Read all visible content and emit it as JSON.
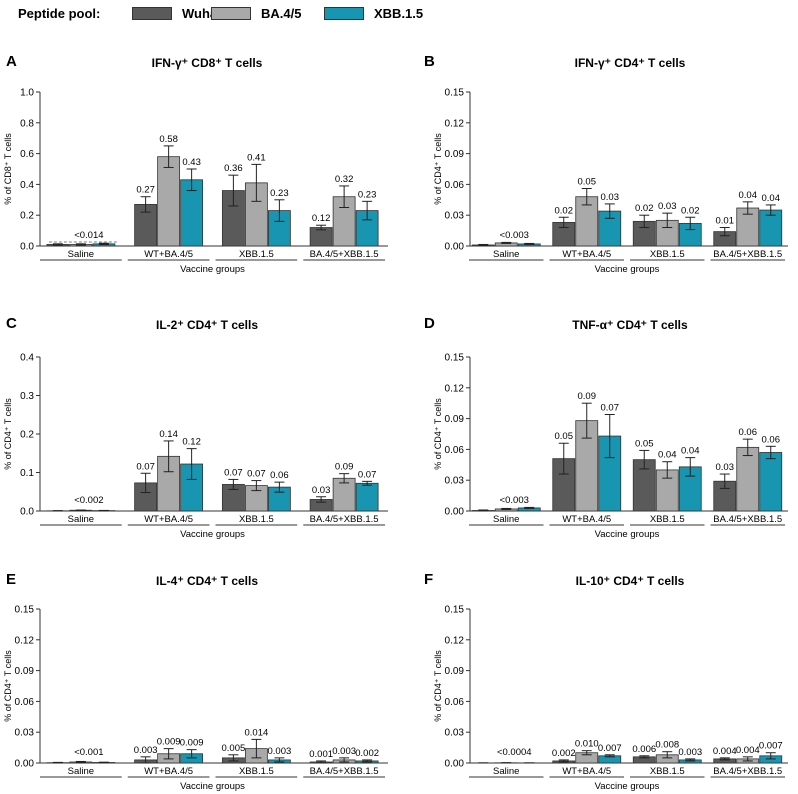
{
  "legend": {
    "title": "Peptide pool:",
    "items": [
      {
        "label": "Wuhan",
        "color": "#5a5a5a"
      },
      {
        "label": "BA.4/5",
        "color": "#a9a9a9"
      },
      {
        "label": "XBB.1.5",
        "color": "#1895b0"
      }
    ]
  },
  "chart_data": [
    {
      "panel": "A",
      "type": "bar",
      "title": "IFN-γ⁺ CD8⁺ T cells",
      "ylabel": "% of CD8⁺ T cells",
      "xlabel": "Vaccine groups",
      "ylim": [
        0,
        1.0
      ],
      "yticks": [
        "0.0",
        "0.2",
        "0.4",
        "0.6",
        "0.8",
        "1.0"
      ],
      "yticks_values": [
        0,
        0.2,
        0.4,
        0.6,
        0.8,
        1.0
      ],
      "categories": [
        "Saline",
        "WT+BA.4/5",
        "XBB.1.5",
        "BA.4/5+XBB.1.5"
      ],
      "series": [
        {
          "name": "Wuhan",
          "values": [
            0.01,
            0.27,
            0.36,
            0.12
          ],
          "errors": [
            0.004,
            0.05,
            0.1,
            0.015
          ]
        },
        {
          "name": "BA.4/5",
          "values": [
            0.01,
            0.58,
            0.41,
            0.32
          ],
          "errors": [
            0.004,
            0.07,
            0.12,
            0.07
          ]
        },
        {
          "name": "XBB.1.5",
          "values": [
            0.014,
            0.43,
            0.23,
            0.23
          ],
          "errors": [
            0.004,
            0.07,
            0.07,
            0.06
          ]
        }
      ],
      "labels": [
        [
          null,
          "0.27",
          "0.36",
          "0.12"
        ],
        [
          null,
          "0.58",
          "0.41",
          "0.32"
        ],
        [
          null,
          "0.43",
          "0.23",
          "0.23"
        ]
      ],
      "group_labels": [
        "<0.014",
        null,
        null,
        null
      ]
    },
    {
      "panel": "B",
      "type": "bar",
      "title": "IFN-γ⁺ CD4⁺ T cells",
      "ylabel": "% of CD4⁺ T cells",
      "xlabel": "Vaccine groups",
      "ylim": [
        0,
        0.15
      ],
      "yticks": [
        "0.00",
        "0.03",
        "0.06",
        "0.09",
        "0.12",
        "0.15"
      ],
      "yticks_values": [
        0,
        0.03,
        0.06,
        0.09,
        0.12,
        0.15
      ],
      "categories": [
        "Saline",
        "WT+BA.4/5",
        "XBB.1.5",
        "BA.4/5+XBB.1.5"
      ],
      "series": [
        {
          "name": "Wuhan",
          "values": [
            0.001,
            0.023,
            0.024,
            0.014
          ],
          "errors": [
            0.0005,
            0.005,
            0.006,
            0.004
          ]
        },
        {
          "name": "BA.4/5",
          "values": [
            0.003,
            0.048,
            0.025,
            0.037
          ],
          "errors": [
            0.0005,
            0.008,
            0.007,
            0.006
          ]
        },
        {
          "name": "XBB.1.5",
          "values": [
            0.002,
            0.034,
            0.022,
            0.035
          ],
          "errors": [
            0.0005,
            0.007,
            0.006,
            0.005
          ]
        }
      ],
      "labels": [
        [
          null,
          "0.02",
          "0.02",
          "0.01"
        ],
        [
          null,
          "0.05",
          "0.03",
          "0.04"
        ],
        [
          null,
          "0.03",
          "0.02",
          "0.04"
        ]
      ],
      "group_labels": [
        "<0.003",
        null,
        null,
        null
      ]
    },
    {
      "panel": "C",
      "type": "bar",
      "title": "IL-2⁺ CD4⁺ T cells",
      "ylabel": "% of CD4⁺ T cells",
      "xlabel": "Vaccine groups",
      "ylim": [
        0,
        0.4
      ],
      "yticks": [
        "0.0",
        "0.1",
        "0.2",
        "0.3",
        "0.4"
      ],
      "yticks_values": [
        0,
        0.1,
        0.2,
        0.3,
        0.4
      ],
      "categories": [
        "Saline",
        "WT+BA.4/5",
        "XBB.1.5",
        "BA.4/5+XBB.1.5"
      ],
      "series": [
        {
          "name": "Wuhan",
          "values": [
            0.0005,
            0.073,
            0.069,
            0.03
          ],
          "errors": [
            0.0005,
            0.025,
            0.013,
            0.007
          ]
        },
        {
          "name": "BA.4/5",
          "values": [
            0.002,
            0.142,
            0.066,
            0.085
          ],
          "errors": [
            0.0005,
            0.04,
            0.013,
            0.012
          ]
        },
        {
          "name": "XBB.1.5",
          "values": [
            0.001,
            0.122,
            0.062,
            0.072
          ],
          "errors": [
            0.0005,
            0.04,
            0.013,
            0.005
          ]
        }
      ],
      "labels": [
        [
          null,
          "0.07",
          "0.07",
          "0.03"
        ],
        [
          null,
          "0.14",
          "0.07",
          "0.09"
        ],
        [
          null,
          "0.12",
          "0.06",
          "0.07"
        ]
      ],
      "group_labels": [
        "<0.002",
        null,
        null,
        null
      ]
    },
    {
      "panel": "D",
      "type": "bar",
      "title": "TNF-α⁺ CD4⁺ T cells",
      "ylabel": "% of CD4⁺ T cells",
      "xlabel": "Vaccine groups",
      "ylim": [
        0,
        0.15
      ],
      "yticks": [
        "0.00",
        "0.03",
        "0.06",
        "0.09",
        "0.12",
        "0.15"
      ],
      "yticks_values": [
        0,
        0.03,
        0.06,
        0.09,
        0.12,
        0.15
      ],
      "categories": [
        "Saline",
        "WT+BA.4/5",
        "XBB.1.5",
        "BA.4/5+XBB.1.5"
      ],
      "series": [
        {
          "name": "Wuhan",
          "values": [
            0.0005,
            0.051,
            0.05,
            0.029
          ],
          "errors": [
            0.0005,
            0.015,
            0.009,
            0.007
          ]
        },
        {
          "name": "BA.4/5",
          "values": [
            0.002,
            0.088,
            0.04,
            0.062
          ],
          "errors": [
            0.0005,
            0.017,
            0.008,
            0.008
          ]
        },
        {
          "name": "XBB.1.5",
          "values": [
            0.003,
            0.073,
            0.043,
            0.057
          ],
          "errors": [
            0.0005,
            0.021,
            0.009,
            0.006
          ]
        }
      ],
      "labels": [
        [
          null,
          "0.05",
          "0.05",
          "0.03"
        ],
        [
          null,
          "0.09",
          "0.04",
          "0.06"
        ],
        [
          null,
          "0.07",
          "0.04",
          "0.06"
        ]
      ],
      "group_labels": [
        "<0.003",
        null,
        null,
        null
      ]
    },
    {
      "panel": "E",
      "type": "bar",
      "title": "IL-4⁺ CD4⁺ T cells",
      "ylabel": "% of CD4⁺ T cells",
      "xlabel": "Vaccine groups",
      "ylim": [
        0,
        0.15
      ],
      "yticks": [
        "0.00",
        "0.03",
        "0.06",
        "0.09",
        "0.12",
        "0.15"
      ],
      "yticks_values": [
        0,
        0.03,
        0.06,
        0.09,
        0.12,
        0.15
      ],
      "categories": [
        "Saline",
        "WT+BA.4/5",
        "XBB.1.5",
        "BA.4/5+XBB.1.5"
      ],
      "series": [
        {
          "name": "Wuhan",
          "values": [
            0.0003,
            0.003,
            0.005,
            0.001
          ],
          "errors": [
            0.0003,
            0.003,
            0.003,
            0.001
          ]
        },
        {
          "name": "BA.4/5",
          "values": [
            0.001,
            0.009,
            0.014,
            0.003
          ],
          "errors": [
            0.0005,
            0.005,
            0.009,
            0.002
          ]
        },
        {
          "name": "XBB.1.5",
          "values": [
            0.0005,
            0.009,
            0.003,
            0.002
          ],
          "errors": [
            0.0003,
            0.004,
            0.002,
            0.001
          ]
        }
      ],
      "labels": [
        [
          null,
          "0.003",
          "0.005",
          "0.001"
        ],
        [
          null,
          "0.009",
          "0.014",
          "0.003"
        ],
        [
          null,
          "0.009",
          "0.003",
          "0.002"
        ]
      ],
      "group_labels": [
        "<0.001",
        null,
        null,
        null
      ]
    },
    {
      "panel": "F",
      "type": "bar",
      "title": "IL-10⁺ CD4⁺ T cells",
      "ylabel": "% of CD4⁺ T cells",
      "xlabel": "Vaccine groups",
      "ylim": [
        0,
        0.15
      ],
      "yticks": [
        "0.00",
        "0.03",
        "0.06",
        "0.09",
        "0.12",
        "0.15"
      ],
      "yticks_values": [
        0,
        0.03,
        0.06,
        0.09,
        0.12,
        0.15
      ],
      "categories": [
        "Saline",
        "WT+BA.4/5",
        "XBB.1.5",
        "BA.4/5+XBB.1.5"
      ],
      "series": [
        {
          "name": "Wuhan",
          "values": [
            0.0001,
            0.002,
            0.006,
            0.004
          ],
          "errors": [
            0.0001,
            0.001,
            0.001,
            0.001
          ]
        },
        {
          "name": "BA.4/5",
          "values": [
            0.0002,
            0.01,
            0.008,
            0.004
          ],
          "errors": [
            0.0001,
            0.002,
            0.003,
            0.002
          ]
        },
        {
          "name": "XBB.1.5",
          "values": [
            0.0001,
            0.007,
            0.003,
            0.007
          ],
          "errors": [
            0.0001,
            0.001,
            0.001,
            0.003
          ]
        }
      ],
      "labels": [
        [
          null,
          "0.002",
          "0.006",
          "0.004"
        ],
        [
          null,
          "0.010",
          "0.008",
          "0.004"
        ],
        [
          null,
          "0.007",
          "0.003",
          "0.007"
        ]
      ],
      "group_labels": [
        "<0.0004",
        null,
        null,
        null
      ]
    }
  ]
}
